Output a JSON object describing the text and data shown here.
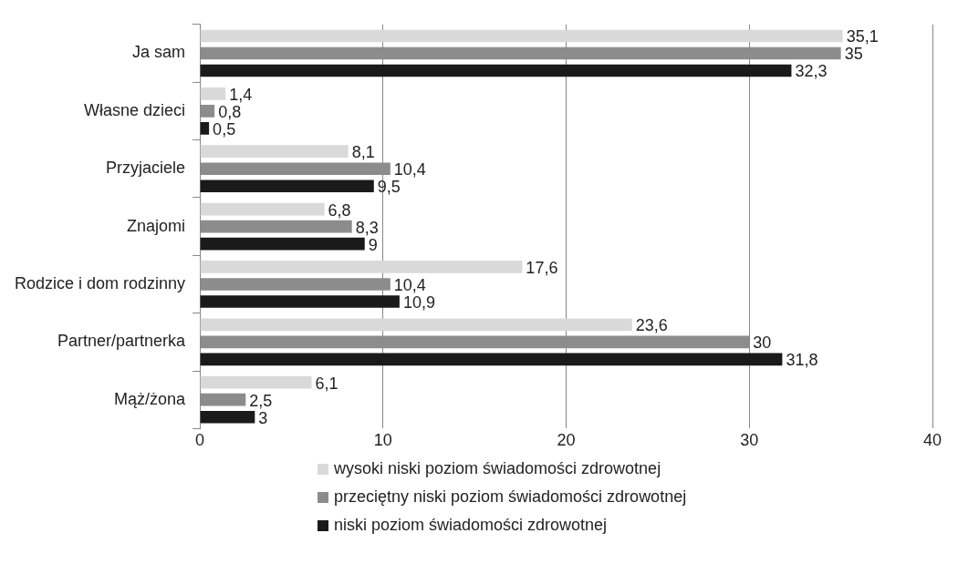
{
  "chart_data": {
    "type": "bar",
    "orientation": "horizontal",
    "categories": [
      "Ja sam",
      "Własne dzieci",
      "Przyjaciele",
      "Znajomi",
      "Rodzice i dom rodzinny",
      "Partner/partnerka",
      "Mąż/żona"
    ],
    "series": [
      {
        "name": "wysoki niski poziom świadomości zdrowotnej",
        "color": "#d9d9d9",
        "values": [
          35.1,
          1.4,
          8.1,
          6.8,
          17.6,
          23.6,
          6.1
        ],
        "value_labels": [
          "35,1",
          "1,4",
          "8,1",
          "6,8",
          "17,6",
          "23,6",
          "6,1"
        ]
      },
      {
        "name": "przeciętny niski poziom świadomości zdrowotnej",
        "color": "#8c8c8c",
        "values": [
          35,
          0.8,
          10.4,
          8.3,
          10.4,
          30,
          2.5
        ],
        "value_labels": [
          "35",
          "0,8",
          "10,4",
          "8,3",
          "10,4",
          "30",
          "2,5"
        ]
      },
      {
        "name": "niski poziom świadomości zdrowotnej",
        "color": "#1a1a1a",
        "values": [
          32.3,
          0.5,
          9.5,
          9,
          10.9,
          31.8,
          3
        ],
        "value_labels": [
          "32,3",
          "0,5",
          "9,5",
          "9",
          "10,9",
          "31,8",
          "3"
        ]
      }
    ],
    "xlim": [
      0,
      40
    ],
    "xticks": [
      0,
      10,
      20,
      30,
      40
    ],
    "grid": "x",
    "legend": "bottom"
  }
}
